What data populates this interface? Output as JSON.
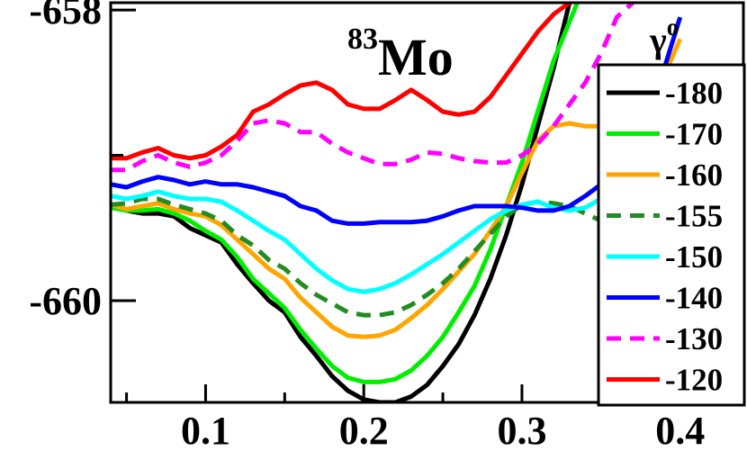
{
  "chart_data": {
    "type": "line",
    "title": "",
    "annotation": {
      "mass_number": "83",
      "element": "Mo"
    },
    "xlabel": "",
    "ylabel": "",
    "xlim": [
      0.04,
      0.44
    ],
    "ylim": [
      -660.7,
      -657.95
    ],
    "x_ticks": [
      {
        "value": 0.1,
        "label": "0.1"
      },
      {
        "value": 0.2,
        "label": "0.2"
      },
      {
        "value": 0.3,
        "label": "0.3"
      },
      {
        "value": 0.4,
        "label": "0.4"
      }
    ],
    "x_minor_ticks": [
      0.05,
      0.15,
      0.25,
      0.35
    ],
    "y_ticks": [
      {
        "value": -658,
        "label": "-658"
      },
      {
        "value": -660,
        "label": "-660"
      }
    ],
    "y_minor_ticks": [
      -659,
      -661
    ],
    "legend": {
      "title": "γ",
      "title_superscript": "o",
      "position": "right"
    },
    "series": [
      {
        "name": "-180",
        "color": "#000000",
        "dash": false,
        "x": [
          0.04,
          0.05,
          0.06,
          0.07,
          0.08,
          0.09,
          0.1,
          0.11,
          0.12,
          0.13,
          0.14,
          0.15,
          0.16,
          0.17,
          0.18,
          0.19,
          0.2,
          0.21,
          0.22,
          0.23,
          0.24,
          0.25,
          0.26,
          0.27,
          0.28,
          0.29,
          0.3,
          0.31,
          0.32,
          0.33
        ],
        "y": [
          -659.35,
          -659.38,
          -659.4,
          -659.4,
          -659.42,
          -659.5,
          -659.55,
          -659.6,
          -659.75,
          -659.88,
          -660.0,
          -660.08,
          -660.25,
          -660.38,
          -660.52,
          -660.62,
          -660.68,
          -660.7,
          -660.7,
          -660.66,
          -660.58,
          -660.45,
          -660.3,
          -660.1,
          -659.85,
          -659.55,
          -659.2,
          -658.8,
          -658.4,
          -657.95
        ]
      },
      {
        "name": "-170",
        "color": "#00ee00",
        "dash": false,
        "x": [
          0.04,
          0.05,
          0.06,
          0.07,
          0.08,
          0.09,
          0.1,
          0.11,
          0.12,
          0.13,
          0.14,
          0.15,
          0.16,
          0.17,
          0.18,
          0.19,
          0.2,
          0.21,
          0.22,
          0.23,
          0.24,
          0.25,
          0.26,
          0.27,
          0.28,
          0.29,
          0.3,
          0.31,
          0.32,
          0.335
        ],
        "y": [
          -659.36,
          -659.38,
          -659.38,
          -659.37,
          -659.4,
          -659.45,
          -659.52,
          -659.58,
          -659.7,
          -659.85,
          -659.95,
          -660.05,
          -660.2,
          -660.33,
          -660.45,
          -660.53,
          -660.56,
          -660.56,
          -660.54,
          -660.48,
          -660.38,
          -660.25,
          -660.08,
          -659.9,
          -659.65,
          -659.35,
          -659.05,
          -658.7,
          -658.35,
          -657.95
        ]
      },
      {
        "name": "-160",
        "color": "#ffa500",
        "dash": false,
        "x": [
          0.04,
          0.05,
          0.06,
          0.07,
          0.08,
          0.09,
          0.1,
          0.11,
          0.12,
          0.13,
          0.14,
          0.15,
          0.16,
          0.17,
          0.18,
          0.19,
          0.2,
          0.21,
          0.22,
          0.23,
          0.24,
          0.25,
          0.26,
          0.27,
          0.28,
          0.29,
          0.3,
          0.31,
          0.32,
          0.33,
          0.34,
          0.35,
          0.36,
          0.37,
          0.38,
          0.39,
          0.4
        ],
        "y": [
          -659.34,
          -659.37,
          -659.35,
          -659.33,
          -659.37,
          -659.4,
          -659.42,
          -659.48,
          -659.58,
          -659.68,
          -659.78,
          -659.85,
          -659.98,
          -660.08,
          -660.18,
          -660.24,
          -660.25,
          -660.24,
          -660.2,
          -660.12,
          -660.03,
          -659.92,
          -659.8,
          -659.68,
          -659.52,
          -659.35,
          -659.12,
          -658.9,
          -658.8,
          -658.78,
          -658.8,
          -658.8,
          -658.78,
          -658.72,
          -658.62,
          -658.45,
          -658.2
        ]
      },
      {
        "name": "-155",
        "color": "#228b22",
        "dash": true,
        "x": [
          0.04,
          0.05,
          0.06,
          0.07,
          0.08,
          0.09,
          0.1,
          0.11,
          0.12,
          0.13,
          0.14,
          0.15,
          0.16,
          0.17,
          0.18,
          0.19,
          0.2,
          0.21,
          0.22,
          0.23,
          0.24,
          0.25,
          0.26,
          0.27,
          0.28,
          0.29,
          0.3,
          0.31,
          0.32,
          0.33,
          0.34,
          0.35,
          0.36,
          0.37,
          0.38,
          0.39,
          0.4
        ],
        "y": [
          -659.34,
          -659.33,
          -659.3,
          -659.3,
          -659.34,
          -659.37,
          -659.4,
          -659.45,
          -659.55,
          -659.62,
          -659.72,
          -659.78,
          -659.88,
          -659.96,
          -660.02,
          -660.08,
          -660.1,
          -660.1,
          -660.08,
          -660.03,
          -659.96,
          -659.88,
          -659.78,
          -659.66,
          -659.54,
          -659.42,
          -659.34,
          -659.32,
          -659.33,
          -659.35,
          -659.4,
          -659.45,
          -659.47,
          -659.45,
          -659.4,
          -659.3,
          -659.15
        ]
      },
      {
        "name": "-150",
        "color": "#00ffff",
        "dash": false,
        "x": [
          0.04,
          0.05,
          0.06,
          0.07,
          0.08,
          0.09,
          0.1,
          0.11,
          0.12,
          0.13,
          0.14,
          0.15,
          0.16,
          0.17,
          0.18,
          0.19,
          0.2,
          0.21,
          0.22,
          0.23,
          0.24,
          0.25,
          0.26,
          0.27,
          0.28,
          0.29,
          0.3,
          0.31,
          0.32,
          0.33,
          0.34,
          0.35,
          0.36,
          0.37,
          0.38,
          0.39,
          0.4
        ],
        "y": [
          -659.28,
          -659.3,
          -659.28,
          -659.25,
          -659.28,
          -659.3,
          -659.3,
          -659.32,
          -659.38,
          -659.45,
          -659.52,
          -659.58,
          -659.68,
          -659.78,
          -659.86,
          -659.92,
          -659.94,
          -659.92,
          -659.88,
          -659.82,
          -659.75,
          -659.68,
          -659.6,
          -659.52,
          -659.44,
          -659.38,
          -659.34,
          -659.32,
          -659.36,
          -659.38,
          -659.36,
          -659.3,
          -659.2,
          -659.05,
          -658.9,
          -658.72,
          -658.5
        ]
      },
      {
        "name": "-140",
        "color": "#0000ff",
        "dash": false,
        "x": [
          0.04,
          0.05,
          0.06,
          0.07,
          0.08,
          0.09,
          0.1,
          0.11,
          0.12,
          0.13,
          0.14,
          0.15,
          0.16,
          0.17,
          0.18,
          0.19,
          0.2,
          0.21,
          0.22,
          0.23,
          0.24,
          0.25,
          0.26,
          0.27,
          0.28,
          0.29,
          0.3,
          0.31,
          0.32,
          0.33,
          0.34,
          0.35,
          0.36,
          0.37,
          0.38,
          0.39,
          0.4
        ],
        "y": [
          -659.2,
          -659.22,
          -659.18,
          -659.15,
          -659.17,
          -659.2,
          -659.18,
          -659.2,
          -659.2,
          -659.22,
          -659.25,
          -659.28,
          -659.35,
          -659.38,
          -659.45,
          -659.47,
          -659.47,
          -659.46,
          -659.46,
          -659.46,
          -659.45,
          -659.42,
          -659.38,
          -659.35,
          -659.35,
          -659.35,
          -659.36,
          -659.38,
          -659.38,
          -659.35,
          -659.28,
          -659.2,
          -659.1,
          -658.95,
          -658.72,
          -658.4,
          -658.05
        ]
      },
      {
        "name": "-130",
        "color": "#ff00ff",
        "dash": true,
        "x": [
          0.04,
          0.05,
          0.06,
          0.07,
          0.08,
          0.09,
          0.1,
          0.11,
          0.12,
          0.13,
          0.14,
          0.15,
          0.16,
          0.17,
          0.18,
          0.19,
          0.2,
          0.21,
          0.22,
          0.23,
          0.24,
          0.25,
          0.26,
          0.27,
          0.28,
          0.29,
          0.3,
          0.31,
          0.32,
          0.33,
          0.34,
          0.35,
          0.36,
          0.37
        ],
        "y": [
          -659.1,
          -659.1,
          -659.04,
          -659.0,
          -659.05,
          -659.08,
          -659.05,
          -659.0,
          -658.9,
          -658.78,
          -658.76,
          -658.78,
          -658.84,
          -658.84,
          -658.92,
          -658.98,
          -659.02,
          -659.06,
          -659.06,
          -659.03,
          -658.98,
          -658.99,
          -659.02,
          -659.04,
          -659.05,
          -659.05,
          -659.0,
          -658.92,
          -658.8,
          -658.65,
          -658.5,
          -658.3,
          -658.05,
          -657.95
        ]
      },
      {
        "name": "-120",
        "color": "#ff0000",
        "dash": false,
        "x": [
          0.04,
          0.05,
          0.06,
          0.07,
          0.08,
          0.09,
          0.1,
          0.11,
          0.12,
          0.13,
          0.14,
          0.15,
          0.16,
          0.17,
          0.18,
          0.19,
          0.2,
          0.21,
          0.22,
          0.23,
          0.24,
          0.25,
          0.26,
          0.27,
          0.28,
          0.29,
          0.3,
          0.31,
          0.32,
          0.33
        ],
        "y": [
          -659.02,
          -659.02,
          -658.98,
          -658.95,
          -659.0,
          -659.02,
          -659.0,
          -658.94,
          -658.86,
          -658.7,
          -658.65,
          -658.58,
          -658.52,
          -658.5,
          -658.55,
          -658.65,
          -658.68,
          -658.68,
          -658.62,
          -658.55,
          -658.62,
          -658.7,
          -658.72,
          -658.7,
          -658.6,
          -658.45,
          -658.3,
          -658.15,
          -658.03,
          -657.95
        ]
      }
    ]
  }
}
